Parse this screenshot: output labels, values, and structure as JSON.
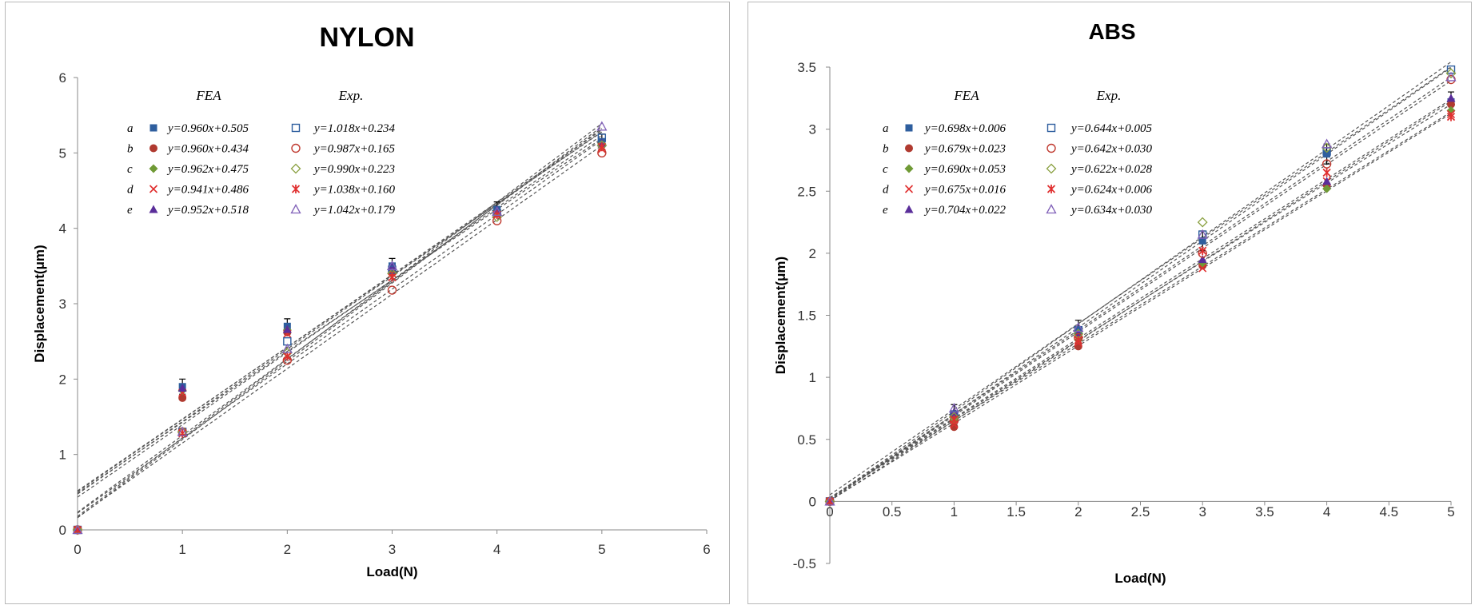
{
  "chart_data": [
    {
      "type": "scatter",
      "title": "NYLON",
      "xlabel": "Load(N)",
      "ylabel": "Displacement(μm)",
      "xlim": [
        0,
        6
      ],
      "ylim": [
        0,
        6
      ],
      "xticks": [
        "0",
        "1",
        "2",
        "3",
        "4",
        "5",
        "6"
      ],
      "yticks": [
        "0",
        "1",
        "2",
        "3",
        "4",
        "5",
        "6"
      ],
      "legend_headers": {
        "fea": "FEA",
        "exp": "Exp."
      },
      "legend_letters": [
        "a",
        "b",
        "c",
        "d",
        "e"
      ],
      "x": [
        0,
        1,
        2,
        3,
        4,
        5
      ],
      "series": [
        {
          "name": "a",
          "group": "FEA",
          "equation": "y=0.960x+0.505",
          "slope": 0.96,
          "intercept": 0.505,
          "marker": "square-filled",
          "color": "#2e5e9e",
          "values": [
            0,
            1.9,
            2.7,
            3.5,
            4.25,
            5.15
          ]
        },
        {
          "name": "b",
          "group": "FEA",
          "equation": "y=0.960x+0.434",
          "slope": 0.96,
          "intercept": 0.434,
          "marker": "circle-filled",
          "color": "#b03a30",
          "values": [
            0,
            1.75,
            2.62,
            3.42,
            4.2,
            5.1
          ]
        },
        {
          "name": "c",
          "group": "FEA",
          "equation": "y=0.962x+0.475",
          "slope": 0.962,
          "intercept": 0.475,
          "marker": "diamond-filled",
          "color": "#6f9a35",
          "values": [
            0,
            1.85,
            2.65,
            3.45,
            4.22,
            5.12
          ]
        },
        {
          "name": "d",
          "group": "FEA",
          "equation": "y=0.941x+0.486",
          "slope": 0.941,
          "intercept": 0.486,
          "marker": "x",
          "color": "#e03030",
          "values": [
            0,
            1.82,
            2.6,
            3.4,
            4.18,
            5.05
          ]
        },
        {
          "name": "e",
          "group": "FEA",
          "equation": "y=0.952x+0.518",
          "slope": 0.952,
          "intercept": 0.518,
          "marker": "triangle-filled",
          "color": "#5a2e9a",
          "values": [
            0,
            1.88,
            2.66,
            3.48,
            4.24,
            5.13
          ]
        },
        {
          "name": "a",
          "group": "Exp.",
          "equation": "y=1.018x+0.234",
          "slope": 1.018,
          "intercept": 0.234,
          "marker": "square-open",
          "color": "#2e5e9e",
          "values": [
            0,
            1.3,
            2.5,
            3.45,
            4.2,
            5.2
          ]
        },
        {
          "name": "b",
          "group": "Exp.",
          "equation": "y=0.987x+0.165",
          "slope": 0.987,
          "intercept": 0.165,
          "marker": "circle-open",
          "color": "#c03a30",
          "values": [
            0,
            1.3,
            2.25,
            3.18,
            4.1,
            5.0
          ]
        },
        {
          "name": "c",
          "group": "Exp.",
          "equation": "y=0.990x+0.223",
          "slope": 0.99,
          "intercept": 0.223,
          "marker": "diamond-open",
          "color": "#8aa040",
          "values": [
            0,
            1.3,
            2.35,
            3.4,
            4.15,
            5.1
          ]
        },
        {
          "name": "d",
          "group": "Exp.",
          "equation": "y=1.038x+0.160",
          "slope": 1.038,
          "intercept": 0.16,
          "marker": "asterisk",
          "color": "#e03030",
          "values": [
            0,
            1.28,
            2.3,
            3.35,
            4.18,
            5.08
          ]
        },
        {
          "name": "e",
          "group": "Exp.",
          "equation": "y=1.042x+0.179",
          "slope": 1.042,
          "intercept": 0.179,
          "marker": "triangle-open",
          "color": "#8060b8",
          "values": [
            0,
            1.3,
            2.4,
            3.5,
            4.22,
            5.35
          ]
        }
      ]
    },
    {
      "type": "scatter",
      "title": "ABS",
      "xlabel": "Load(N)",
      "ylabel": "Displacement(μm)",
      "xlim": [
        0,
        5
      ],
      "ylim": [
        -0.5,
        3.5
      ],
      "xticks": [
        "0",
        "0.5",
        "1",
        "1.5",
        "2",
        "2.5",
        "3",
        "3.5",
        "4",
        "4.5",
        "5"
      ],
      "yticks": [
        "-0.5",
        "0",
        "0.5",
        "1",
        "1.5",
        "2",
        "2.5",
        "3",
        "3.5"
      ],
      "legend_headers": {
        "fea": "FEA",
        "exp": "Exp."
      },
      "legend_letters": [
        "a",
        "b",
        "c",
        "d",
        "e"
      ],
      "x": [
        0,
        1,
        2,
        3,
        4,
        5
      ],
      "series": [
        {
          "name": "a",
          "group": "FEA",
          "equation": "y=0.698x+0.006",
          "slope": 0.698,
          "intercept": 0.006,
          "marker": "square-filled",
          "color": "#2e5e9e",
          "values": [
            0,
            0.7,
            1.38,
            2.1,
            2.8,
            3.22
          ]
        },
        {
          "name": "b",
          "group": "FEA",
          "equation": "y=0.679x+0.023",
          "slope": 0.679,
          "intercept": 0.023,
          "marker": "circle-filled",
          "color": "#b03a30",
          "values": [
            0,
            0.6,
            1.25,
            1.9,
            2.55,
            3.2
          ]
        },
        {
          "name": "c",
          "group": "FEA",
          "equation": "y=0.690x+0.053",
          "slope": 0.69,
          "intercept": 0.053,
          "marker": "diamond-filled",
          "color": "#6f9a35",
          "values": [
            0,
            0.65,
            1.3,
            1.92,
            2.52,
            3.15
          ]
        },
        {
          "name": "d",
          "group": "FEA",
          "equation": "y=0.675x+0.016",
          "slope": 0.675,
          "intercept": 0.016,
          "marker": "x",
          "color": "#e03030",
          "values": [
            0,
            0.62,
            1.28,
            1.88,
            2.58,
            3.12
          ]
        },
        {
          "name": "e",
          "group": "FEA",
          "equation": "y=0.704x+0.022",
          "slope": 0.704,
          "intercept": 0.022,
          "marker": "triangle-filled",
          "color": "#5a2e9a",
          "values": [
            0,
            0.72,
            1.35,
            1.95,
            2.58,
            3.25
          ]
        },
        {
          "name": "a",
          "group": "Exp.",
          "equation": "y=0.644x+0.005",
          "slope": 0.644,
          "intercept": 0.005,
          "marker": "square-open",
          "color": "#2e5e9e",
          "values": [
            0,
            0.7,
            1.38,
            2.15,
            2.82,
            3.48
          ]
        },
        {
          "name": "b",
          "group": "Exp.",
          "equation": "y=0.642x+0.030",
          "slope": 0.642,
          "intercept": 0.03,
          "marker": "circle-open",
          "color": "#c03a30",
          "values": [
            0,
            0.65,
            1.32,
            2.0,
            2.72,
            3.4
          ]
        },
        {
          "name": "c",
          "group": "Exp.",
          "equation": "y=0.622x+0.028",
          "slope": 0.622,
          "intercept": 0.028,
          "marker": "diamond-open",
          "color": "#8aa040",
          "values": [
            0,
            0.68,
            1.35,
            2.25,
            2.85,
            3.45
          ]
        },
        {
          "name": "d",
          "group": "Exp.",
          "equation": "y=0.624x+0.006",
          "slope": 0.624,
          "intercept": 0.006,
          "marker": "asterisk",
          "color": "#e03030",
          "values": [
            0,
            0.66,
            1.3,
            2.02,
            2.65,
            3.1
          ]
        },
        {
          "name": "e",
          "group": "Exp.",
          "equation": "y=0.634x+0.030",
          "slope": 0.634,
          "intercept": 0.03,
          "marker": "triangle-open",
          "color": "#8060b8",
          "values": [
            0,
            0.75,
            1.4,
            2.15,
            2.88,
            3.42
          ]
        }
      ]
    }
  ]
}
